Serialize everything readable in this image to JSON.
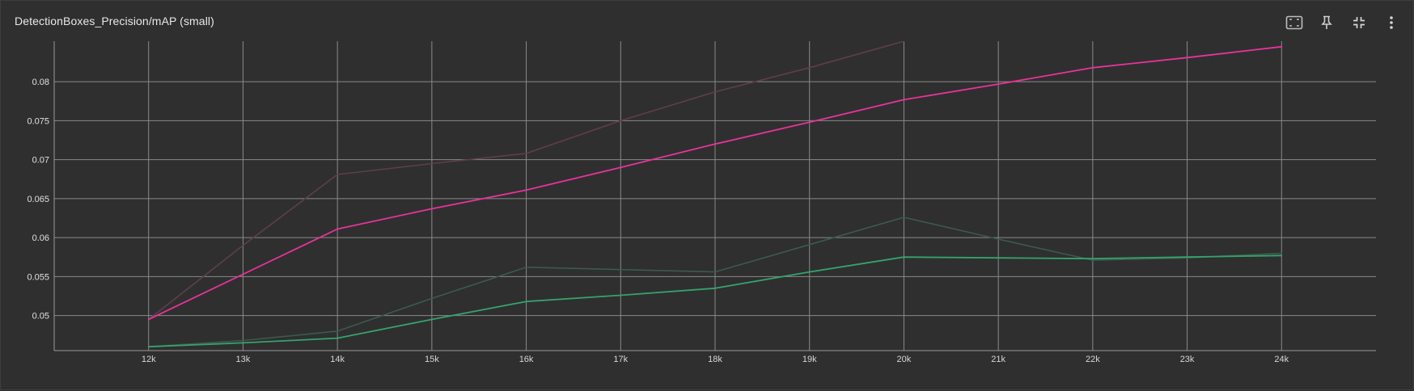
{
  "header": {
    "title": "DetectionBoxes_Precision/mAP (small)"
  },
  "toolbar": {
    "icons": [
      "fit-domain-icon",
      "pin-icon",
      "collapse-icon",
      "more-vert-icon"
    ]
  },
  "colors": {
    "grid": "#8a8a8a",
    "pink": "#e8339b",
    "pink_raw": "#5e3e4e",
    "green": "#34a36c",
    "green_raw": "#3d5a4c"
  },
  "chart_data": {
    "type": "line",
    "xlabel": "",
    "ylabel": "",
    "x_ticks": [
      "12k",
      "13k",
      "14k",
      "15k",
      "16k",
      "17k",
      "18k",
      "19k",
      "20k",
      "21k",
      "22k",
      "23k",
      "24k"
    ],
    "x_tick_values": [
      12000,
      13000,
      14000,
      15000,
      16000,
      17000,
      18000,
      19000,
      20000,
      21000,
      22000,
      23000,
      24000
    ],
    "y_ticks": [
      "0.05",
      "0.055",
      "0.06",
      "0.065",
      "0.07",
      "0.075",
      "0.08"
    ],
    "y_tick_values": [
      0.05,
      0.055,
      0.06,
      0.065,
      0.07,
      0.075,
      0.08
    ],
    "xlim": [
      11000,
      25000
    ],
    "ylim": [
      0.0455,
      0.0852
    ],
    "grid": true,
    "series": [
      {
        "color": "pink_raw",
        "points": [
          [
            12000,
            0.0495
          ],
          [
            13000,
            0.059
          ],
          [
            14000,
            0.0681
          ],
          [
            15000,
            0.0695
          ],
          [
            16000,
            0.0708
          ],
          [
            17000,
            0.075
          ],
          [
            18000,
            0.0787
          ],
          [
            19000,
            0.0818
          ],
          [
            20000,
            0.0852
          ]
        ]
      },
      {
        "color": "pink",
        "points": [
          [
            12000,
            0.0495
          ],
          [
            13000,
            0.0553
          ],
          [
            14000,
            0.0611
          ],
          [
            15000,
            0.0637
          ],
          [
            16000,
            0.0661
          ],
          [
            17000,
            0.069
          ],
          [
            18000,
            0.072
          ],
          [
            19000,
            0.0748
          ],
          [
            20000,
            0.0777
          ],
          [
            21000,
            0.0797
          ],
          [
            22000,
            0.0818
          ],
          [
            23000,
            0.0831
          ],
          [
            24000,
            0.0845
          ]
        ]
      },
      {
        "color": "green_raw",
        "points": [
          [
            12000,
            0.046
          ],
          [
            13000,
            0.0468
          ],
          [
            14000,
            0.048
          ],
          [
            15000,
            0.0522
          ],
          [
            16000,
            0.0562
          ],
          [
            17000,
            0.0559
          ],
          [
            18000,
            0.0556
          ],
          [
            19000,
            0.0591
          ],
          [
            20000,
            0.0626
          ],
          [
            21000,
            0.0598
          ],
          [
            22000,
            0.0571
          ],
          [
            23000,
            0.0574
          ],
          [
            24000,
            0.058
          ]
        ]
      },
      {
        "color": "green",
        "points": [
          [
            12000,
            0.046
          ],
          [
            13000,
            0.0465
          ],
          [
            14000,
            0.0471
          ],
          [
            15000,
            0.0495
          ],
          [
            16000,
            0.0518
          ],
          [
            17000,
            0.0526
          ],
          [
            18000,
            0.0535
          ],
          [
            19000,
            0.0556
          ],
          [
            20000,
            0.0575
          ],
          [
            21000,
            0.0574
          ],
          [
            22000,
            0.0573
          ],
          [
            23000,
            0.0575
          ],
          [
            24000,
            0.0577
          ]
        ]
      }
    ]
  }
}
